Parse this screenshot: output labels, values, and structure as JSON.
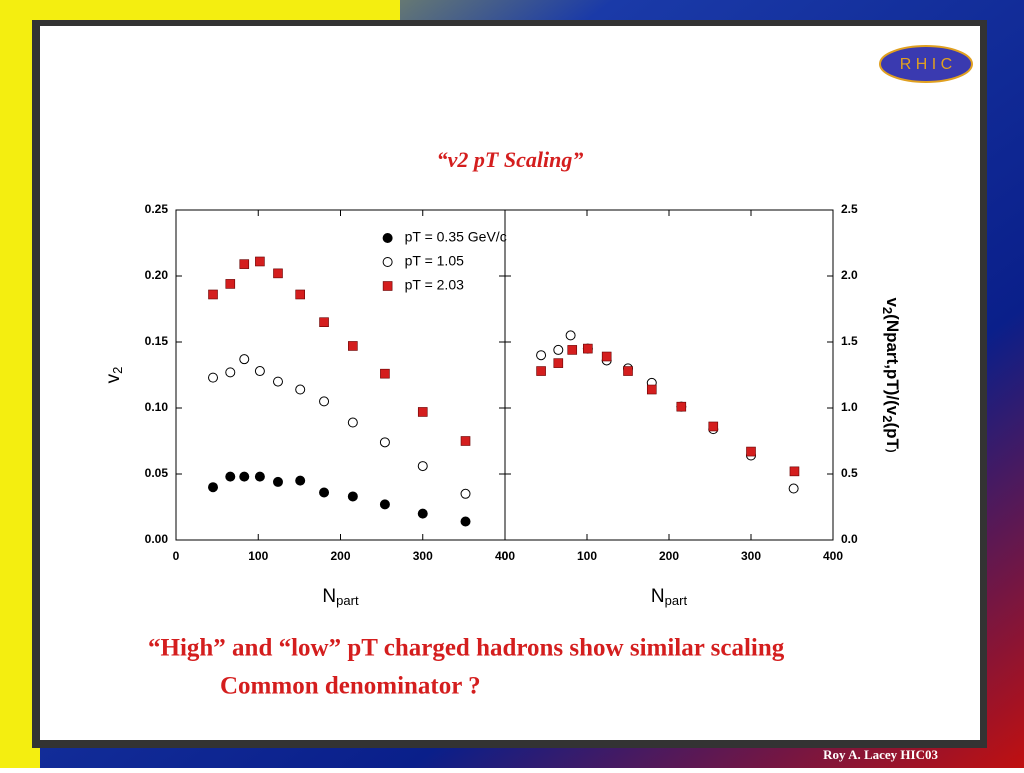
{
  "slide": {
    "title": "“v2 pT Scaling”",
    "logo": "R H I C",
    "lines": [
      "“High” and “low” pT charged hadrons show similar scaling",
      "Common denominator ?"
    ],
    "footer": "Roy A. Lacey HIC03"
  },
  "chart_data": [
    {
      "type": "scatter",
      "xlim": [
        0,
        400
      ],
      "xticks": [
        0,
        100,
        200,
        300,
        400
      ],
      "ylim": [
        0,
        0.25
      ],
      "yticks": [
        {
          "value": 0,
          "label": "0.00"
        },
        0.05,
        {
          "value": 0.1,
          "label": "0.10"
        },
        0.15,
        {
          "value": 0.2,
          "label": "0.20"
        },
        0.25
      ],
      "x_label": [
        {
          "text": "N"
        },
        {
          "text": "part",
          "sub": true
        }
      ],
      "y_label": [
        {
          "text": "v"
        },
        {
          "text": "2",
          "sub": true
        }
      ],
      "legend": "top-right",
      "series": [
        {
          "name": "pT = 0.35 GeV/c",
          "color": "#000000",
          "marker": "circle",
          "x": [
            45,
            66,
            83,
            102,
            124,
            151,
            180,
            215,
            254,
            300,
            352
          ],
          "values": [
            0.04,
            0.048,
            0.048,
            0.048,
            0.044,
            0.045,
            0.036,
            0.033,
            0.027,
            0.02,
            0.014
          ]
        },
        {
          "name": "pT = 1.05",
          "color": "#000000",
          "marker": "circle-open",
          "x": [
            45,
            66,
            83,
            102,
            124,
            151,
            180,
            215,
            254,
            300,
            352
          ],
          "values": [
            0.123,
            0.127,
            0.137,
            0.128,
            0.12,
            0.114,
            0.105,
            0.089,
            0.074,
            0.056,
            0.035
          ]
        },
        {
          "name": "pT = 2.03",
          "color": "#d41e1e",
          "marker": "square",
          "x": [
            45,
            66,
            83,
            102,
            124,
            151,
            180,
            215,
            254,
            300,
            352
          ],
          "values": [
            0.186,
            0.194,
            0.209,
            0.211,
            0.202,
            0.186,
            0.165,
            0.147,
            0.126,
            0.097,
            0.075
          ]
        }
      ]
    },
    {
      "type": "scatter",
      "xlim": [
        0,
        400
      ],
      "xticks": [
        0,
        100,
        200,
        300,
        400
      ],
      "ylim": [
        0,
        2.5
      ],
      "yticks": [
        {
          "value": 0,
          "label": "0.0"
        },
        0.5,
        {
          "value": 1,
          "label": "1.0"
        },
        1.5,
        {
          "value": 2,
          "label": "2.0"
        },
        2.5
      ],
      "x_label": [
        {
          "text": "N"
        },
        {
          "text": "part",
          "sub": true
        }
      ],
      "y_label": [
        {
          "text": "v"
        },
        {
          "text": "2",
          "sub": true
        },
        {
          "text": "(Npart,pT)/(v"
        },
        {
          "text": "2",
          "sub": true
        },
        {
          "text": "(pT"
        },
        {
          "text": ")",
          "small": true
        }
      ],
      "series": [
        {
          "color": "#000000",
          "marker": "circle-open",
          "x": [
            44,
            65,
            80,
            101,
            124,
            150,
            179,
            215,
            254,
            300,
            352
          ],
          "values": [
            1.4,
            1.44,
            1.55,
            1.45,
            1.36,
            1.3,
            1.19,
            1.01,
            0.84,
            0.64,
            0.39
          ]
        },
        {
          "color": "#d41e1e",
          "marker": "square",
          "x": [
            44,
            65,
            82,
            101,
            124,
            150,
            179,
            215,
            254,
            300,
            353
          ],
          "values": [
            1.28,
            1.34,
            1.44,
            1.45,
            1.39,
            1.28,
            1.14,
            1.01,
            0.86,
            0.67,
            0.52
          ]
        }
      ]
    }
  ]
}
